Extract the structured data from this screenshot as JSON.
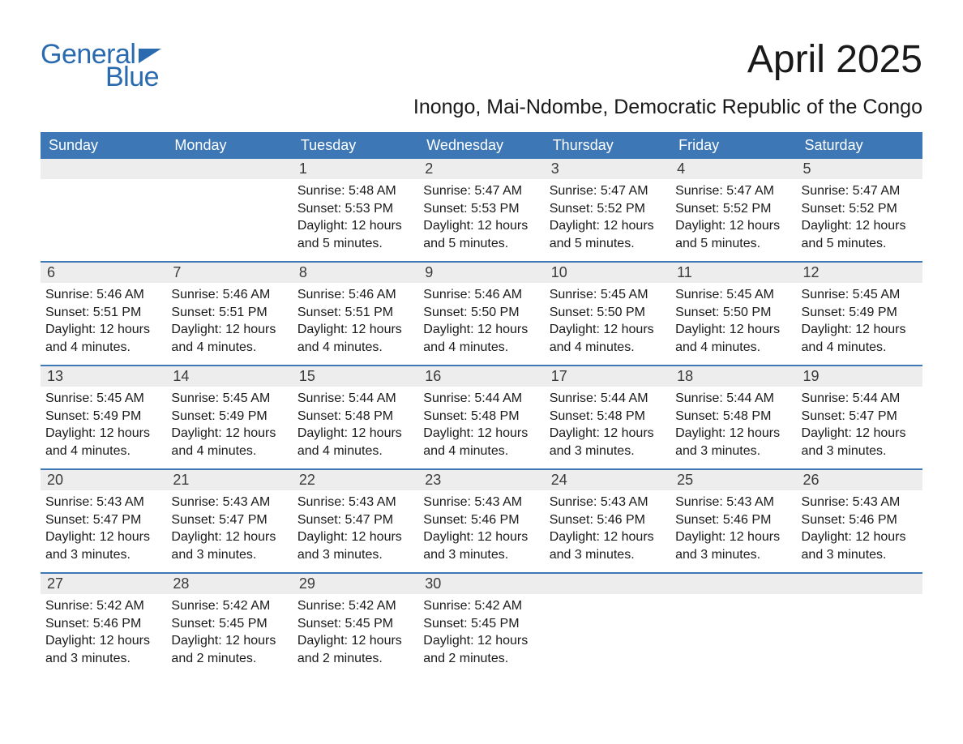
{
  "logo": {
    "line1": "General",
    "line2": "Blue",
    "flag_color": "#2a6bb0"
  },
  "title": "April 2025",
  "subtitle": "Inongo, Mai-Ndombe, Democratic Republic of the Congo",
  "colors": {
    "header_bg": "#3d77b6",
    "header_text": "#ffffff",
    "daynum_bg": "#ededed",
    "text": "#1a1a1a",
    "accent": "#2a6bb0"
  },
  "daysOfWeek": [
    "Sunday",
    "Monday",
    "Tuesday",
    "Wednesday",
    "Thursday",
    "Friday",
    "Saturday"
  ],
  "weeks": [
    [
      {
        "n": "",
        "empty": true
      },
      {
        "n": "",
        "empty": true
      },
      {
        "n": "1",
        "sunrise": "Sunrise: 5:48 AM",
        "sunset": "Sunset: 5:53 PM",
        "daylight": "Daylight: 12 hours and 5 minutes."
      },
      {
        "n": "2",
        "sunrise": "Sunrise: 5:47 AM",
        "sunset": "Sunset: 5:53 PM",
        "daylight": "Daylight: 12 hours and 5 minutes."
      },
      {
        "n": "3",
        "sunrise": "Sunrise: 5:47 AM",
        "sunset": "Sunset: 5:52 PM",
        "daylight": "Daylight: 12 hours and 5 minutes."
      },
      {
        "n": "4",
        "sunrise": "Sunrise: 5:47 AM",
        "sunset": "Sunset: 5:52 PM",
        "daylight": "Daylight: 12 hours and 5 minutes."
      },
      {
        "n": "5",
        "sunrise": "Sunrise: 5:47 AM",
        "sunset": "Sunset: 5:52 PM",
        "daylight": "Daylight: 12 hours and 5 minutes."
      }
    ],
    [
      {
        "n": "6",
        "sunrise": "Sunrise: 5:46 AM",
        "sunset": "Sunset: 5:51 PM",
        "daylight": "Daylight: 12 hours and 4 minutes."
      },
      {
        "n": "7",
        "sunrise": "Sunrise: 5:46 AM",
        "sunset": "Sunset: 5:51 PM",
        "daylight": "Daylight: 12 hours and 4 minutes."
      },
      {
        "n": "8",
        "sunrise": "Sunrise: 5:46 AM",
        "sunset": "Sunset: 5:51 PM",
        "daylight": "Daylight: 12 hours and 4 minutes."
      },
      {
        "n": "9",
        "sunrise": "Sunrise: 5:46 AM",
        "sunset": "Sunset: 5:50 PM",
        "daylight": "Daylight: 12 hours and 4 minutes."
      },
      {
        "n": "10",
        "sunrise": "Sunrise: 5:45 AM",
        "sunset": "Sunset: 5:50 PM",
        "daylight": "Daylight: 12 hours and 4 minutes."
      },
      {
        "n": "11",
        "sunrise": "Sunrise: 5:45 AM",
        "sunset": "Sunset: 5:50 PM",
        "daylight": "Daylight: 12 hours and 4 minutes."
      },
      {
        "n": "12",
        "sunrise": "Sunrise: 5:45 AM",
        "sunset": "Sunset: 5:49 PM",
        "daylight": "Daylight: 12 hours and 4 minutes."
      }
    ],
    [
      {
        "n": "13",
        "sunrise": "Sunrise: 5:45 AM",
        "sunset": "Sunset: 5:49 PM",
        "daylight": "Daylight: 12 hours and 4 minutes."
      },
      {
        "n": "14",
        "sunrise": "Sunrise: 5:45 AM",
        "sunset": "Sunset: 5:49 PM",
        "daylight": "Daylight: 12 hours and 4 minutes."
      },
      {
        "n": "15",
        "sunrise": "Sunrise: 5:44 AM",
        "sunset": "Sunset: 5:48 PM",
        "daylight": "Daylight: 12 hours and 4 minutes."
      },
      {
        "n": "16",
        "sunrise": "Sunrise: 5:44 AM",
        "sunset": "Sunset: 5:48 PM",
        "daylight": "Daylight: 12 hours and 4 minutes."
      },
      {
        "n": "17",
        "sunrise": "Sunrise: 5:44 AM",
        "sunset": "Sunset: 5:48 PM",
        "daylight": "Daylight: 12 hours and 3 minutes."
      },
      {
        "n": "18",
        "sunrise": "Sunrise: 5:44 AM",
        "sunset": "Sunset: 5:48 PM",
        "daylight": "Daylight: 12 hours and 3 minutes."
      },
      {
        "n": "19",
        "sunrise": "Sunrise: 5:44 AM",
        "sunset": "Sunset: 5:47 PM",
        "daylight": "Daylight: 12 hours and 3 minutes."
      }
    ],
    [
      {
        "n": "20",
        "sunrise": "Sunrise: 5:43 AM",
        "sunset": "Sunset: 5:47 PM",
        "daylight": "Daylight: 12 hours and 3 minutes."
      },
      {
        "n": "21",
        "sunrise": "Sunrise: 5:43 AM",
        "sunset": "Sunset: 5:47 PM",
        "daylight": "Daylight: 12 hours and 3 minutes."
      },
      {
        "n": "22",
        "sunrise": "Sunrise: 5:43 AM",
        "sunset": "Sunset: 5:47 PM",
        "daylight": "Daylight: 12 hours and 3 minutes."
      },
      {
        "n": "23",
        "sunrise": "Sunrise: 5:43 AM",
        "sunset": "Sunset: 5:46 PM",
        "daylight": "Daylight: 12 hours and 3 minutes."
      },
      {
        "n": "24",
        "sunrise": "Sunrise: 5:43 AM",
        "sunset": "Sunset: 5:46 PM",
        "daylight": "Daylight: 12 hours and 3 minutes."
      },
      {
        "n": "25",
        "sunrise": "Sunrise: 5:43 AM",
        "sunset": "Sunset: 5:46 PM",
        "daylight": "Daylight: 12 hours and 3 minutes."
      },
      {
        "n": "26",
        "sunrise": "Sunrise: 5:43 AM",
        "sunset": "Sunset: 5:46 PM",
        "daylight": "Daylight: 12 hours and 3 minutes."
      }
    ],
    [
      {
        "n": "27",
        "sunrise": "Sunrise: 5:42 AM",
        "sunset": "Sunset: 5:46 PM",
        "daylight": "Daylight: 12 hours and 3 minutes."
      },
      {
        "n": "28",
        "sunrise": "Sunrise: 5:42 AM",
        "sunset": "Sunset: 5:45 PM",
        "daylight": "Daylight: 12 hours and 2 minutes."
      },
      {
        "n": "29",
        "sunrise": "Sunrise: 5:42 AM",
        "sunset": "Sunset: 5:45 PM",
        "daylight": "Daylight: 12 hours and 2 minutes."
      },
      {
        "n": "30",
        "sunrise": "Sunrise: 5:42 AM",
        "sunset": "Sunset: 5:45 PM",
        "daylight": "Daylight: 12 hours and 2 minutes."
      },
      {
        "n": "",
        "empty": true
      },
      {
        "n": "",
        "empty": true
      },
      {
        "n": "",
        "empty": true
      }
    ]
  ]
}
